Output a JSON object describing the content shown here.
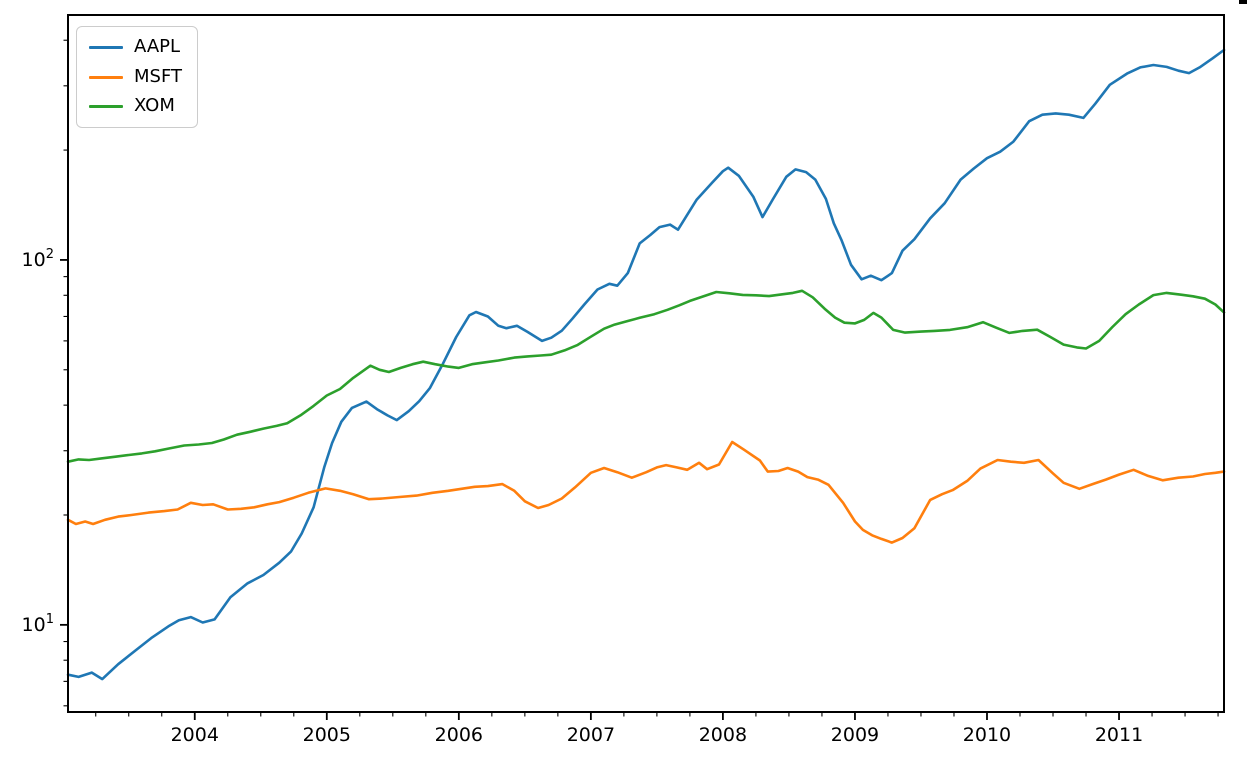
{
  "figure": {
    "background": "#ffffff",
    "corner_artifact_color": "#000000",
    "axes_edge_color": "#000000"
  },
  "legend": {
    "position": "upper-left",
    "items": [
      {
        "label": "AAPL",
        "color": "#1f77b4"
      },
      {
        "label": "MSFT",
        "color": "#ff7f0e"
      },
      {
        "label": "XOM",
        "color": "#2ca02c"
      }
    ]
  },
  "chart_data": {
    "type": "line",
    "title": "",
    "xlabel": "",
    "ylabel": "",
    "grid": false,
    "legend_position": "upper left",
    "y_scale": "log",
    "x_domain": [
      2003.04,
      2011.795
    ],
    "y_domain": [
      5.77,
      469
    ],
    "x_major_ticks": [
      {
        "value": 2004,
        "label": "2004"
      },
      {
        "value": 2005,
        "label": "2005"
      },
      {
        "value": 2006,
        "label": "2006"
      },
      {
        "value": 2007,
        "label": "2007"
      },
      {
        "value": 2008,
        "label": "2008"
      },
      {
        "value": 2009,
        "label": "2009"
      },
      {
        "value": 2010,
        "label": "2010"
      },
      {
        "value": 2011,
        "label": "2011"
      }
    ],
    "x_minor_step": 0.25,
    "y_major_ticks": [
      {
        "value": 10,
        "base": "10",
        "exp": "1"
      },
      {
        "value": 100,
        "base": "10",
        "exp": "2"
      }
    ],
    "y_minor_ticks": [
      6,
      7,
      8,
      9,
      20,
      30,
      40,
      50,
      60,
      70,
      80,
      90,
      200,
      300,
      400
    ],
    "series": [
      {
        "name": "AAPL",
        "color": "#1f77b4",
        "points": [
          [
            2003.04,
            7.3
          ],
          [
            2003.12,
            7.2
          ],
          [
            2003.22,
            7.4
          ],
          [
            2003.3,
            7.1
          ],
          [
            2003.42,
            7.8
          ],
          [
            2003.55,
            8.5
          ],
          [
            2003.67,
            9.2
          ],
          [
            2003.8,
            9.9
          ],
          [
            2003.88,
            10.3
          ],
          [
            2003.97,
            10.5
          ],
          [
            2004.06,
            10.15
          ],
          [
            2004.15,
            10.35
          ],
          [
            2004.27,
            11.9
          ],
          [
            2004.4,
            13.0
          ],
          [
            2004.52,
            13.7
          ],
          [
            2004.64,
            14.8
          ],
          [
            2004.73,
            15.9
          ],
          [
            2004.81,
            17.8
          ],
          [
            2004.9,
            21.0
          ],
          [
            2004.98,
            27.0
          ],
          [
            2005.04,
            31.5
          ],
          [
            2005.11,
            36.0
          ],
          [
            2005.19,
            39.3
          ],
          [
            2005.3,
            40.9
          ],
          [
            2005.38,
            39.0
          ],
          [
            2005.46,
            37.5
          ],
          [
            2005.53,
            36.4
          ],
          [
            2005.62,
            38.5
          ],
          [
            2005.7,
            41.0
          ],
          [
            2005.78,
            44.5
          ],
          [
            2005.88,
            52.0
          ],
          [
            2005.98,
            61.5
          ],
          [
            2006.08,
            70.5
          ],
          [
            2006.13,
            72.0
          ],
          [
            2006.22,
            70.0
          ],
          [
            2006.3,
            66.0
          ],
          [
            2006.36,
            65.0
          ],
          [
            2006.44,
            66.0
          ],
          [
            2006.52,
            63.5
          ],
          [
            2006.63,
            60.0
          ],
          [
            2006.7,
            61.2
          ],
          [
            2006.78,
            64.0
          ],
          [
            2006.86,
            69.0
          ],
          [
            2006.95,
            75.5
          ],
          [
            2007.05,
            83.0
          ],
          [
            2007.14,
            86.0
          ],
          [
            2007.2,
            85.0
          ],
          [
            2007.28,
            92.0
          ],
          [
            2007.37,
            111.0
          ],
          [
            2007.45,
            117.0
          ],
          [
            2007.52,
            123.0
          ],
          [
            2007.6,
            125.0
          ],
          [
            2007.66,
            121.0
          ],
          [
            2007.73,
            133.0
          ],
          [
            2007.8,
            146.0
          ],
          [
            2007.92,
            163.0
          ],
          [
            2008.0,
            175.0
          ],
          [
            2008.04,
            179.0
          ],
          [
            2008.12,
            170.0
          ],
          [
            2008.23,
            149.0
          ],
          [
            2008.3,
            131.0
          ],
          [
            2008.38,
            147.0
          ],
          [
            2008.48,
            169.0
          ],
          [
            2008.55,
            177.0
          ],
          [
            2008.63,
            174.0
          ],
          [
            2008.7,
            166.0
          ],
          [
            2008.78,
            147.0
          ],
          [
            2008.84,
            126.0
          ],
          [
            2008.9,
            113.0
          ],
          [
            2008.97,
            97.0
          ],
          [
            2009.05,
            88.5
          ],
          [
            2009.12,
            90.5
          ],
          [
            2009.2,
            88.0
          ],
          [
            2009.28,
            92.0
          ],
          [
            2009.36,
            106.0
          ],
          [
            2009.45,
            114.0
          ],
          [
            2009.57,
            130.0
          ],
          [
            2009.68,
            143.0
          ],
          [
            2009.8,
            166.0
          ],
          [
            2009.9,
            178.0
          ],
          [
            2010.0,
            190.0
          ],
          [
            2010.1,
            198.0
          ],
          [
            2010.2,
            211.0
          ],
          [
            2010.32,
            240.0
          ],
          [
            2010.42,
            250.0
          ],
          [
            2010.52,
            252.0
          ],
          [
            2010.62,
            250.0
          ],
          [
            2010.73,
            245.0
          ],
          [
            2010.82,
            268.0
          ],
          [
            2010.93,
            302.0
          ],
          [
            2011.06,
            324.0
          ],
          [
            2011.16,
            337.0
          ],
          [
            2011.26,
            342.0
          ],
          [
            2011.36,
            338.0
          ],
          [
            2011.45,
            330.0
          ],
          [
            2011.53,
            325.0
          ],
          [
            2011.61,
            337.0
          ],
          [
            2011.71,
            357.0
          ],
          [
            2011.795,
            376.0
          ]
        ]
      },
      {
        "name": "MSFT",
        "color": "#ff7f0e",
        "points": [
          [
            2003.04,
            19.4
          ],
          [
            2003.1,
            18.9
          ],
          [
            2003.17,
            19.2
          ],
          [
            2003.23,
            18.9
          ],
          [
            2003.32,
            19.4
          ],
          [
            2003.42,
            19.8
          ],
          [
            2003.52,
            20.0
          ],
          [
            2003.65,
            20.3
          ],
          [
            2003.77,
            20.5
          ],
          [
            2003.87,
            20.7
          ],
          [
            2003.97,
            21.6
          ],
          [
            2004.06,
            21.3
          ],
          [
            2004.14,
            21.4
          ],
          [
            2004.25,
            20.7
          ],
          [
            2004.35,
            20.8
          ],
          [
            2004.45,
            21.0
          ],
          [
            2004.55,
            21.4
          ],
          [
            2004.64,
            21.7
          ],
          [
            2004.75,
            22.3
          ],
          [
            2004.86,
            23.0
          ],
          [
            2004.99,
            23.65
          ],
          [
            2005.1,
            23.3
          ],
          [
            2005.2,
            22.8
          ],
          [
            2005.32,
            22.1
          ],
          [
            2005.42,
            22.2
          ],
          [
            2005.55,
            22.4
          ],
          [
            2005.68,
            22.6
          ],
          [
            2005.8,
            23.0
          ],
          [
            2005.92,
            23.3
          ],
          [
            2006.02,
            23.6
          ],
          [
            2006.12,
            23.9
          ],
          [
            2006.22,
            24.0
          ],
          [
            2006.33,
            24.3
          ],
          [
            2006.42,
            23.3
          ],
          [
            2006.5,
            21.8
          ],
          [
            2006.6,
            20.9
          ],
          [
            2006.68,
            21.3
          ],
          [
            2006.78,
            22.2
          ],
          [
            2006.88,
            23.8
          ],
          [
            2007.0,
            26.1
          ],
          [
            2007.1,
            26.9
          ],
          [
            2007.2,
            26.2
          ],
          [
            2007.31,
            25.3
          ],
          [
            2007.42,
            26.2
          ],
          [
            2007.5,
            27.0
          ],
          [
            2007.57,
            27.4
          ],
          [
            2007.65,
            27.0
          ],
          [
            2007.73,
            26.6
          ],
          [
            2007.82,
            27.8
          ],
          [
            2007.88,
            26.7
          ],
          [
            2007.97,
            27.5
          ],
          [
            2008.07,
            31.7
          ],
          [
            2008.16,
            30.2
          ],
          [
            2008.28,
            28.2
          ],
          [
            2008.34,
            26.3
          ],
          [
            2008.42,
            26.4
          ],
          [
            2008.49,
            26.9
          ],
          [
            2008.57,
            26.3
          ],
          [
            2008.64,
            25.4
          ],
          [
            2008.72,
            25.0
          ],
          [
            2008.8,
            24.2
          ],
          [
            2008.91,
            21.6
          ],
          [
            2009.0,
            19.2
          ],
          [
            2009.06,
            18.2
          ],
          [
            2009.13,
            17.6
          ],
          [
            2009.2,
            17.2
          ],
          [
            2009.28,
            16.8
          ],
          [
            2009.36,
            17.3
          ],
          [
            2009.45,
            18.4
          ],
          [
            2009.57,
            22.0
          ],
          [
            2009.66,
            22.8
          ],
          [
            2009.74,
            23.4
          ],
          [
            2009.85,
            24.8
          ],
          [
            2009.95,
            26.8
          ],
          [
            2010.08,
            28.3
          ],
          [
            2010.18,
            28.0
          ],
          [
            2010.28,
            27.8
          ],
          [
            2010.39,
            28.3
          ],
          [
            2010.5,
            26.0
          ],
          [
            2010.58,
            24.5
          ],
          [
            2010.7,
            23.6
          ],
          [
            2010.8,
            24.3
          ],
          [
            2010.9,
            25.0
          ],
          [
            2011.0,
            25.8
          ],
          [
            2011.11,
            26.6
          ],
          [
            2011.22,
            25.6
          ],
          [
            2011.33,
            24.9
          ],
          [
            2011.45,
            25.3
          ],
          [
            2011.56,
            25.5
          ],
          [
            2011.65,
            25.9
          ],
          [
            2011.73,
            26.1
          ],
          [
            2011.795,
            26.3
          ]
        ]
      },
      {
        "name": "XOM",
        "color": "#2ca02c",
        "points": [
          [
            2003.04,
            28.0
          ],
          [
            2003.12,
            28.4
          ],
          [
            2003.2,
            28.3
          ],
          [
            2003.3,
            28.6
          ],
          [
            2003.4,
            28.9
          ],
          [
            2003.5,
            29.2
          ],
          [
            2003.6,
            29.5
          ],
          [
            2003.7,
            29.9
          ],
          [
            2003.8,
            30.4
          ],
          [
            2003.92,
            31.0
          ],
          [
            2004.03,
            31.2
          ],
          [
            2004.13,
            31.5
          ],
          [
            2004.22,
            32.2
          ],
          [
            2004.32,
            33.2
          ],
          [
            2004.42,
            33.8
          ],
          [
            2004.52,
            34.5
          ],
          [
            2004.62,
            35.1
          ],
          [
            2004.7,
            35.7
          ],
          [
            2004.8,
            37.5
          ],
          [
            2004.9,
            39.8
          ],
          [
            2005.0,
            42.5
          ],
          [
            2005.1,
            44.3
          ],
          [
            2005.2,
            47.5
          ],
          [
            2005.33,
            51.3
          ],
          [
            2005.4,
            50.0
          ],
          [
            2005.47,
            49.3
          ],
          [
            2005.56,
            50.6
          ],
          [
            2005.65,
            51.8
          ],
          [
            2005.73,
            52.6
          ],
          [
            2005.82,
            51.8
          ],
          [
            2005.92,
            51.0
          ],
          [
            2006.0,
            50.6
          ],
          [
            2006.1,
            51.8
          ],
          [
            2006.2,
            52.4
          ],
          [
            2006.3,
            53.0
          ],
          [
            2006.42,
            54.0
          ],
          [
            2006.52,
            54.4
          ],
          [
            2006.62,
            54.7
          ],
          [
            2006.7,
            55.0
          ],
          [
            2006.8,
            56.5
          ],
          [
            2006.9,
            58.5
          ],
          [
            2007.0,
            61.6
          ],
          [
            2007.1,
            64.8
          ],
          [
            2007.18,
            66.5
          ],
          [
            2007.28,
            68.0
          ],
          [
            2007.37,
            69.4
          ],
          [
            2007.48,
            71.0
          ],
          [
            2007.58,
            73.0
          ],
          [
            2007.67,
            75.1
          ],
          [
            2007.75,
            77.2
          ],
          [
            2007.84,
            79.2
          ],
          [
            2007.95,
            81.7
          ],
          [
            2008.05,
            81.0
          ],
          [
            2008.15,
            80.2
          ],
          [
            2008.25,
            80.0
          ],
          [
            2008.35,
            79.6
          ],
          [
            2008.45,
            80.5
          ],
          [
            2008.53,
            81.2
          ],
          [
            2008.6,
            82.3
          ],
          [
            2008.68,
            79.0
          ],
          [
            2008.77,
            73.5
          ],
          [
            2008.85,
            69.5
          ],
          [
            2008.92,
            67.3
          ],
          [
            2009.0,
            67.0
          ],
          [
            2009.07,
            68.5
          ],
          [
            2009.14,
            71.6
          ],
          [
            2009.2,
            69.5
          ],
          [
            2009.29,
            64.3
          ],
          [
            2009.38,
            63.2
          ],
          [
            2009.5,
            63.6
          ],
          [
            2009.6,
            63.9
          ],
          [
            2009.72,
            64.3
          ],
          [
            2009.85,
            65.4
          ],
          [
            2009.97,
            67.5
          ],
          [
            2010.07,
            65.2
          ],
          [
            2010.17,
            63.1
          ],
          [
            2010.27,
            63.9
          ],
          [
            2010.38,
            64.4
          ],
          [
            2010.48,
            61.5
          ],
          [
            2010.58,
            58.6
          ],
          [
            2010.68,
            57.6
          ],
          [
            2010.75,
            57.2
          ],
          [
            2010.85,
            60.0
          ],
          [
            2010.95,
            65.5
          ],
          [
            2011.05,
            71.0
          ],
          [
            2011.15,
            75.5
          ],
          [
            2011.26,
            80.1
          ],
          [
            2011.36,
            81.2
          ],
          [
            2011.47,
            80.3
          ],
          [
            2011.56,
            79.5
          ],
          [
            2011.65,
            78.3
          ],
          [
            2011.73,
            75.5
          ],
          [
            2011.795,
            71.8
          ]
        ]
      }
    ]
  }
}
